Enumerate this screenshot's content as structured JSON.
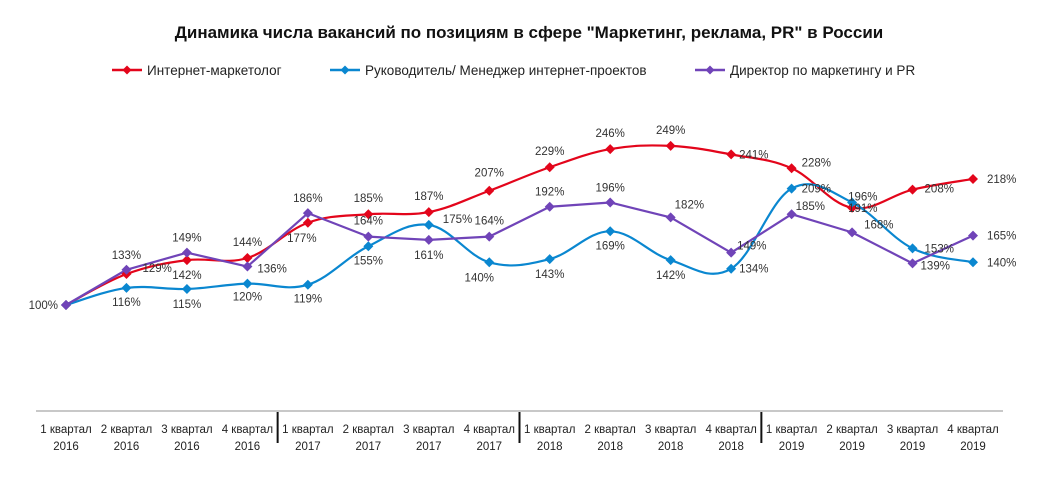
{
  "chart_data": {
    "type": "line",
    "title": "Динамика числа вакансий по позициям в сфере \"Маркетинг, реклама, PR\" в России",
    "xlabel": "",
    "ylabel": "",
    "ylim": [
      100,
      250
    ],
    "grid": false,
    "legend_position": "top",
    "categories": [
      [
        "1 квартал",
        "2016"
      ],
      [
        "2 квартал",
        "2016"
      ],
      [
        "3 квартал",
        "2016"
      ],
      [
        "4 квартал",
        "2016"
      ],
      [
        "1 квартал",
        "2017"
      ],
      [
        "2 квартал",
        "2017"
      ],
      [
        "3 квартал",
        "2017"
      ],
      [
        "4 квартал",
        "2017"
      ],
      [
        "1 квартал",
        "2018"
      ],
      [
        "2 квартал",
        "2018"
      ],
      [
        "3 квартал",
        "2018"
      ],
      [
        "4 квартал",
        "2018"
      ],
      [
        "1 квартал",
        "2019"
      ],
      [
        "2 квартал",
        "2019"
      ],
      [
        "3 квартал",
        "2019"
      ],
      [
        "4 квартал",
        "2019"
      ]
    ],
    "series": [
      {
        "name": "Интернет-маркетолог",
        "color": "#e3051b",
        "values": [
          100,
          129,
          142,
          144,
          177,
          185,
          187,
          207,
          229,
          246,
          249,
          241,
          228,
          191,
          208,
          218
        ],
        "labels": [
          "100%",
          "129%",
          "142%",
          "144%",
          "177%",
          "185%",
          "187%",
          "207%",
          "229%",
          "246%",
          "249%",
          "241%",
          "228%",
          "191%",
          "208%",
          "218%"
        ]
      },
      {
        "name": "Руководитель/ Менеджер интернет-проектов",
        "color": "#0a87d0",
        "values": [
          100,
          116,
          115,
          120,
          119,
          155,
          175,
          140,
          143,
          169,
          142,
          134,
          209,
          196,
          153,
          140
        ],
        "labels": [
          "",
          "116%",
          "115%",
          "120%",
          "119%",
          "155%",
          "175%",
          "140%",
          "143%",
          "169%",
          "142%",
          "134%",
          "209%",
          "196%",
          "153%",
          "140%"
        ]
      },
      {
        "name": "Директор по маркетингу и PR",
        "color": "#7044b8",
        "values": [
          100,
          133,
          149,
          136,
          186,
          164,
          161,
          164,
          192,
          196,
          182,
          149,
          185,
          168,
          139,
          165
        ],
        "labels": [
          "",
          "133%",
          "149%",
          "136%",
          "186%",
          "164%",
          "161%",
          "164%",
          "192%",
          "196%",
          "182%",
          "149%",
          "185%",
          "168%",
          "139%",
          "165%"
        ]
      }
    ]
  }
}
